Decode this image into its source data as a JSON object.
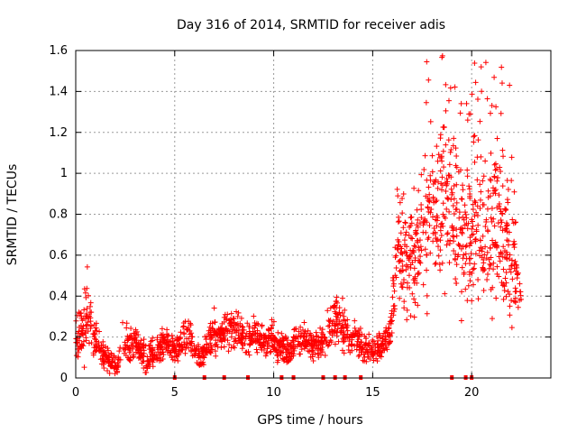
{
  "chart_data": {
    "type": "scatter",
    "title": "Day 316 of 2014, SRMTID for receiver adis",
    "xlabel": "GPS time / hours",
    "ylabel": "SRMTID / TECUs",
    "xlim": [
      0,
      24
    ],
    "ylim": [
      0,
      1.6
    ],
    "xticks": [
      0,
      5,
      10,
      15,
      20
    ],
    "yticks": [
      0,
      0.2,
      0.4,
      0.6,
      0.8,
      1.0,
      1.2,
      1.4,
      1.6
    ],
    "ytick_labels": [
      "0",
      "0.2",
      "0.4",
      "0.6",
      "0.8",
      "1",
      "1.2",
      "1.4",
      "1.6"
    ],
    "grid": true,
    "marker": "+",
    "color": "#ff0000",
    "series_profile": {
      "name": "SRMTID",
      "x": [
        0.0,
        0.3,
        0.6,
        0.9,
        1.2,
        1.5,
        1.8,
        2.1,
        2.4,
        2.7,
        3.0,
        3.3,
        3.6,
        3.9,
        4.2,
        4.5,
        4.8,
        5.1,
        5.4,
        5.7,
        6.0,
        6.3,
        6.6,
        6.9,
        7.2,
        7.5,
        7.8,
        8.1,
        8.4,
        8.7,
        9.0,
        9.3,
        9.6,
        9.9,
        10.2,
        10.5,
        10.8,
        11.1,
        11.4,
        11.7,
        12.0,
        12.3,
        12.6,
        12.9,
        13.2,
        13.5,
        13.8,
        14.1,
        14.4,
        14.7,
        15.0,
        15.3,
        15.6,
        15.9,
        16.2,
        16.5,
        16.8,
        17.1,
        17.4,
        17.7,
        18.0,
        18.3,
        18.6,
        18.9,
        19.2,
        19.5,
        19.8,
        20.1,
        20.4,
        20.7,
        21.0,
        21.3,
        21.6,
        21.9,
        22.2,
        22.5
      ],
      "y": [
        0.2,
        0.22,
        0.3,
        0.2,
        0.14,
        0.1,
        0.08,
        0.06,
        0.2,
        0.15,
        0.18,
        0.12,
        0.1,
        0.12,
        0.15,
        0.18,
        0.15,
        0.14,
        0.2,
        0.22,
        0.12,
        0.1,
        0.14,
        0.22,
        0.2,
        0.24,
        0.24,
        0.26,
        0.2,
        0.18,
        0.22,
        0.2,
        0.18,
        0.2,
        0.15,
        0.16,
        0.12,
        0.18,
        0.2,
        0.18,
        0.16,
        0.16,
        0.2,
        0.22,
        0.3,
        0.28,
        0.18,
        0.2,
        0.16,
        0.14,
        0.14,
        0.16,
        0.18,
        0.22,
        0.6,
        0.65,
        0.55,
        0.6,
        0.65,
        0.75,
        0.85,
        0.8,
        0.9,
        0.85,
        0.8,
        0.75,
        0.7,
        0.68,
        0.75,
        0.65,
        0.7,
        0.75,
        0.7,
        0.6,
        0.55,
        0.35
      ],
      "spread": [
        0.06,
        0.1,
        0.15,
        0.08,
        0.05,
        0.05,
        0.04,
        0.04,
        0.1,
        0.07,
        0.06,
        0.05,
        0.05,
        0.05,
        0.05,
        0.05,
        0.05,
        0.05,
        0.06,
        0.06,
        0.04,
        0.04,
        0.05,
        0.08,
        0.06,
        0.06,
        0.06,
        0.06,
        0.06,
        0.06,
        0.06,
        0.06,
        0.05,
        0.06,
        0.05,
        0.05,
        0.05,
        0.06,
        0.06,
        0.05,
        0.05,
        0.05,
        0.06,
        0.08,
        0.12,
        0.1,
        0.06,
        0.06,
        0.05,
        0.05,
        0.05,
        0.05,
        0.05,
        0.06,
        0.2,
        0.22,
        0.2,
        0.22,
        0.25,
        0.28,
        0.3,
        0.3,
        0.32,
        0.32,
        0.3,
        0.3,
        0.25,
        0.22,
        0.3,
        0.25,
        0.3,
        0.28,
        0.26,
        0.25,
        0.22,
        0.05
      ],
      "max_value_approx": 1.6,
      "zero_markers_x": [
        5.0,
        6.5,
        7.5,
        8.7,
        10.4,
        11.0,
        12.5,
        13.1,
        13.6,
        14.4,
        19.0,
        19.7,
        20.0
      ]
    }
  }
}
